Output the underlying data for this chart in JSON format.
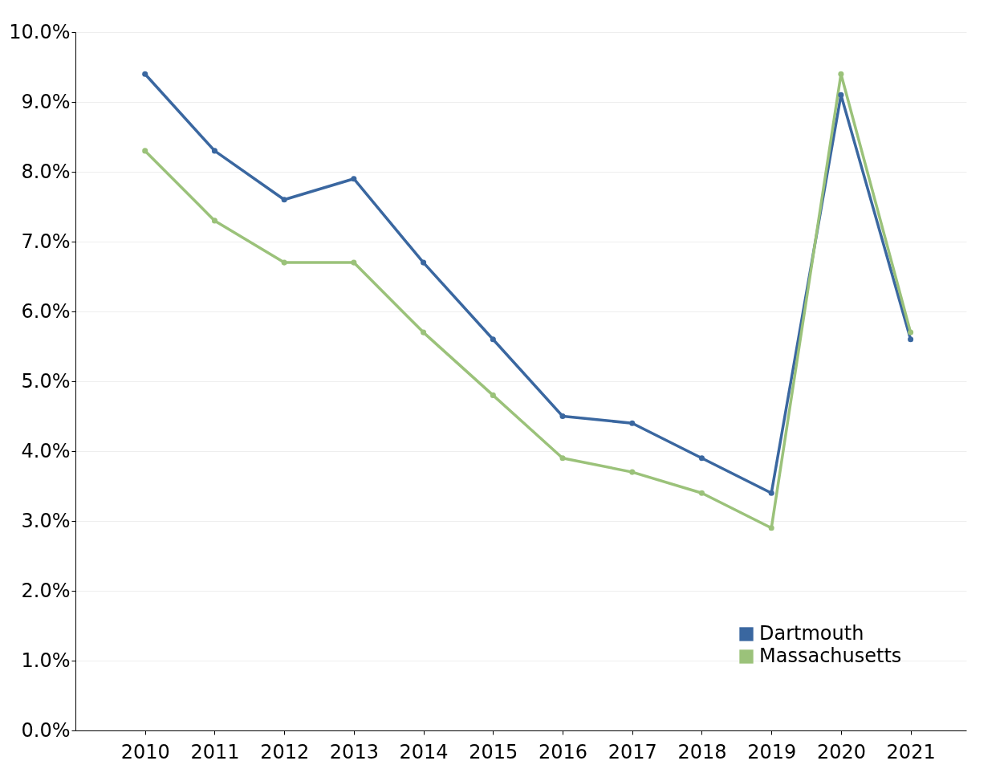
{
  "chart_data": {
    "type": "line",
    "categories": [
      "2010",
      "2011",
      "2012",
      "2013",
      "2014",
      "2015",
      "2016",
      "2017",
      "2018",
      "2019",
      "2020",
      "2021"
    ],
    "series": [
      {
        "name": "Dartmouth",
        "color": "#3a67a0",
        "values": [
          9.4,
          8.3,
          7.6,
          7.9,
          6.7,
          5.6,
          4.5,
          4.4,
          3.9,
          3.4,
          9.1,
          5.6
        ]
      },
      {
        "name": "Massachusetts",
        "color": "#9bc27a",
        "values": [
          8.3,
          7.3,
          6.7,
          6.7,
          5.7,
          4.8,
          3.9,
          3.7,
          3.4,
          2.9,
          9.4,
          5.7
        ]
      }
    ],
    "ylim": [
      0,
      10
    ],
    "yticks": [
      {
        "value": 0,
        "label": "0.0%"
      },
      {
        "value": 1,
        "label": "1.0%"
      },
      {
        "value": 2,
        "label": "2.0%"
      },
      {
        "value": 3,
        "label": "3.0%"
      },
      {
        "value": 4,
        "label": "4.0%"
      },
      {
        "value": 5,
        "label": "5.0%"
      },
      {
        "value": 6,
        "label": "6.0%"
      },
      {
        "value": 7,
        "label": "7.0%"
      },
      {
        "value": 8,
        "label": "8.0%"
      },
      {
        "value": 9,
        "label": "9.0%"
      },
      {
        "value": 10,
        "label": "10.0%"
      }
    ],
    "grid": "y",
    "legend": "bottom right",
    "marker": "circle",
    "line_style": "solid"
  }
}
